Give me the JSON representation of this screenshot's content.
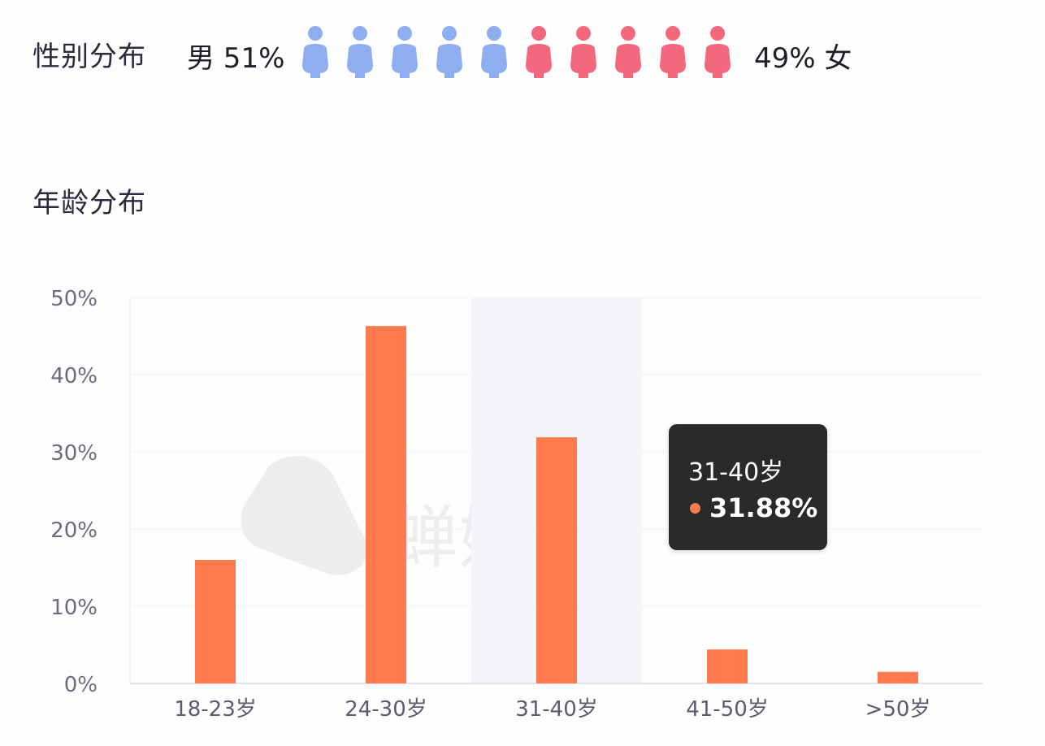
{
  "gender": {
    "title": "性别分布",
    "male_label": "男 51%",
    "female_label": "49% 女",
    "male_icons": 5,
    "female_icons": 5,
    "male_color": "#8eaef0",
    "female_color": "#f4687e"
  },
  "age": {
    "title": "年龄分布"
  },
  "watermark": {
    "text": "蝉妈妈"
  },
  "tooltip": {
    "title": "31-40岁",
    "value": "31.88%",
    "dot_color": "#ff7a4d"
  },
  "chart_data": {
    "type": "bar",
    "categories": [
      "18-23岁",
      "24-30岁",
      "31-40岁",
      "41-50岁",
      ">50岁"
    ],
    "values": [
      16.0,
      46.3,
      31.88,
      4.4,
      1.5
    ],
    "ylim": [
      0,
      50
    ],
    "yticks": [
      0,
      10,
      20,
      30,
      40,
      50
    ],
    "ytick_labels": [
      "0%",
      "10%",
      "20%",
      "30%",
      "40%",
      "50%"
    ],
    "bar_color": "#ff7a4d",
    "highlight_category": "31-40岁",
    "grid": true,
    "title": "",
    "xlabel": "",
    "ylabel": ""
  }
}
